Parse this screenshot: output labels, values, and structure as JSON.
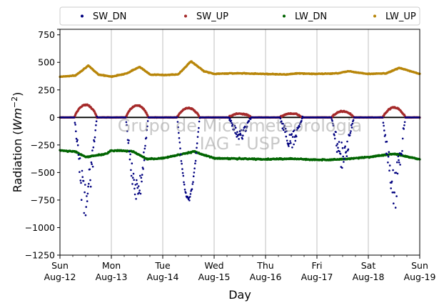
{
  "chart_data": {
    "type": "scatter",
    "xlabel": "Day",
    "ylabel": "Radiation (Wm⁻²)",
    "ylabel_parts": {
      "main": "Radiation (",
      "unit": "Wm",
      "exp": "−2",
      "close": ")"
    },
    "ylim": [
      -1250,
      800
    ],
    "xlim": [
      0,
      7
    ],
    "yticks": [
      800,
      750,
      500,
      250,
      0,
      -250,
      -500,
      -750,
      -1000,
      -1250
    ],
    "ytick_labels": [
      "",
      "750",
      "500",
      "250",
      "0",
      "−250",
      "−500",
      "−750",
      "−1000",
      "−1250"
    ],
    "xtick_labels": [
      {
        "day": "Sun",
        "date": "Aug-12"
      },
      {
        "day": "Mon",
        "date": "Aug-13"
      },
      {
        "day": "Tue",
        "date": "Aug-14"
      },
      {
        "day": "Wed",
        "date": "Aug-15"
      },
      {
        "day": "Thu",
        "date": "Aug-16"
      },
      {
        "day": "Fri",
        "date": "Aug-17"
      },
      {
        "day": "Sat",
        "date": "Aug-18"
      },
      {
        "day": "Sun",
        "date": "Aug-19"
      }
    ],
    "grid": "vertical",
    "legend_position": "top",
    "watermark": [
      "Grupo de Micrometeorologia",
      "IAG - USP"
    ],
    "series": [
      {
        "name": "SW_DN",
        "color": "#00007f",
        "daily_min": [
          -960,
          -800,
          -760,
          -220,
          -280,
          -470,
          -850
        ]
      },
      {
        "name": "SW_UP",
        "color": "#a52a2a",
        "daily_max": [
          115,
          110,
          85,
          35,
          35,
          55,
          90
        ]
      },
      {
        "name": "LW_DN",
        "color": "#006400",
        "x": [
          0.0,
          0.3,
          0.5,
          0.9,
          1.0,
          1.4,
          1.7,
          2.0,
          2.6,
          3.0,
          3.5,
          4.0,
          4.5,
          5.0,
          5.5,
          6.0,
          6.5,
          7.0
        ],
        "y": [
          -300,
          -310,
          -360,
          -330,
          -300,
          -305,
          -380,
          -370,
          -310,
          -370,
          -375,
          -380,
          -375,
          -385,
          -380,
          -360,
          -330,
          -380
        ]
      },
      {
        "name": "LW_UP",
        "color": "#b8860b",
        "x": [
          0.0,
          0.3,
          0.55,
          0.75,
          1.0,
          1.3,
          1.55,
          1.75,
          2.0,
          2.3,
          2.55,
          2.8,
          3.0,
          3.3,
          3.6,
          4.0,
          4.4,
          4.6,
          5.0,
          5.4,
          5.6,
          6.0,
          6.35,
          6.6,
          7.0
        ],
        "y": [
          370,
          380,
          470,
          390,
          370,
          400,
          460,
          390,
          385,
          390,
          510,
          420,
          395,
          400,
          400,
          395,
          390,
          400,
          395,
          400,
          420,
          395,
          400,
          450,
          395
        ]
      }
    ]
  }
}
